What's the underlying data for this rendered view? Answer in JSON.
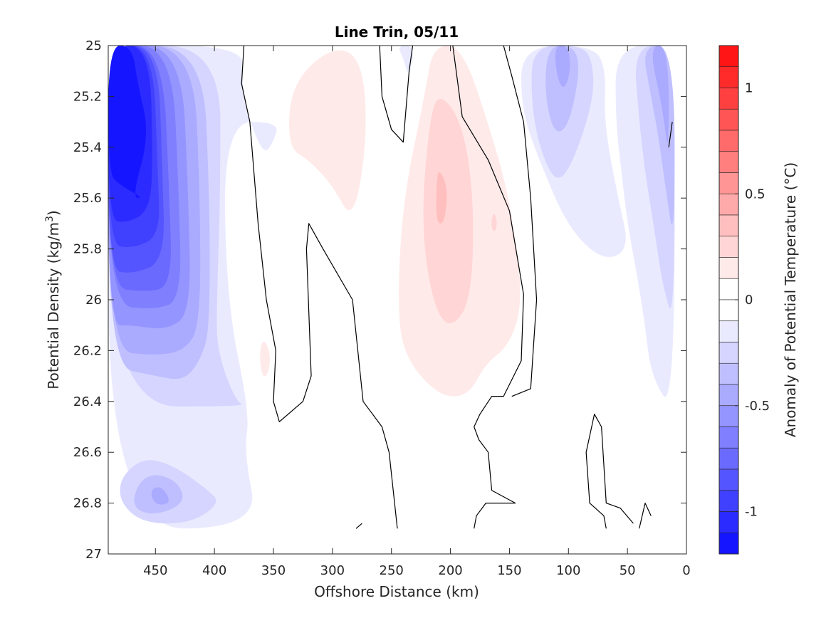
{
  "chart_data": {
    "type": "contour",
    "title": "Line Trin, 05/11",
    "xlabel": "Offshore Distance (km)",
    "ylabel_prefix": "Potential Density (kg/m",
    "ylabel_sup": "3",
    "ylabel_suffix": ")",
    "colorbar_label": "Anomaly of Potential Temperature (°C)",
    "x_range": [
      490,
      0
    ],
    "x_reversed": true,
    "y_range": [
      25,
      27
    ],
    "y_reversed": true,
    "x_ticks": [
      450,
      400,
      350,
      300,
      250,
      200,
      150,
      100,
      50,
      0
    ],
    "x_tick_labels": [
      "450",
      "400",
      "350",
      "300",
      "250",
      "200",
      "150",
      "100",
      "50",
      "0"
    ],
    "y_ticks": [
      25,
      25.2,
      25.4,
      25.6,
      25.8,
      26,
      26.2,
      26.4,
      26.6,
      26.8,
      27
    ],
    "y_tick_labels": [
      "25",
      "25.2",
      "25.4",
      "25.6",
      "25.8",
      "26",
      "26.2",
      "26.4",
      "26.6",
      "26.8",
      "27"
    ],
    "colorbar_range": [
      -1.2,
      1.2
    ],
    "colorbar_step": 0.1,
    "colorbar_ticks": [
      1,
      0.5,
      0,
      -0.5,
      -1
    ],
    "colorbar_tick_labels": [
      "1",
      "0.5",
      "0",
      "-0.5",
      "-1"
    ],
    "colormap": {
      "negative": "#0000ff",
      "zero": "#ffffff",
      "positive": "#ff0000"
    },
    "zero_contour_color": "#000000",
    "data_extent": {
      "x": [
        490,
        10
      ],
      "y": [
        25,
        26.9
      ]
    },
    "regions": [
      {
        "level": -0.1,
        "points": [
          [
            490,
            25
          ],
          [
            375,
            25
          ],
          [
            377,
            25.15
          ],
          [
            370,
            25.3
          ],
          [
            358,
            25.43
          ],
          [
            350,
            25.38
          ],
          [
            345,
            25.3
          ],
          [
            392,
            25.3
          ],
          [
            390,
            26
          ],
          [
            370,
            26.45
          ],
          [
            375,
            26.6
          ],
          [
            362,
            26.9
          ],
          [
            490,
            26.9
          ]
        ]
      },
      {
        "level": -0.2,
        "points": [
          [
            490,
            25
          ],
          [
            395,
            25
          ],
          [
            395,
            25.6
          ],
          [
            398,
            26
          ],
          [
            398,
            26.2
          ],
          [
            382,
            26.4
          ],
          [
            372,
            26.42
          ],
          [
            490,
            26.42
          ]
        ]
      },
      {
        "level": -0.2,
        "points": [
          [
            480,
            26.7
          ],
          [
            460,
            26.62
          ],
          [
            435,
            26.65
          ],
          [
            405,
            26.75
          ],
          [
            395,
            26.8
          ],
          [
            420,
            26.88
          ],
          [
            460,
            26.88
          ],
          [
            480,
            26.8
          ]
        ]
      },
      {
        "level": -0.3,
        "points": [
          [
            490,
            25
          ],
          [
            410,
            25
          ],
          [
            404,
            25.6
          ],
          [
            404,
            26.1
          ],
          [
            410,
            26.22
          ],
          [
            425,
            26.32
          ],
          [
            450,
            26.3
          ],
          [
            490,
            26.26
          ]
        ]
      },
      {
        "level": -0.3,
        "points": [
          [
            465,
            26.72
          ],
          [
            450,
            26.68
          ],
          [
            430,
            26.72
          ],
          [
            425,
            26.8
          ],
          [
            450,
            26.85
          ],
          [
            470,
            26.82
          ]
        ]
      },
      {
        "level": -0.4,
        "points": [
          [
            490,
            25
          ],
          [
            418,
            25
          ],
          [
            412,
            25.6
          ],
          [
            412,
            26.1
          ],
          [
            425,
            26.2
          ],
          [
            450,
            26.22
          ],
          [
            490,
            26.2
          ]
        ]
      },
      {
        "level": -0.4,
        "points": [
          [
            455,
            26.75
          ],
          [
            445,
            26.73
          ],
          [
            436,
            26.8
          ],
          [
            450,
            26.81
          ]
        ]
      },
      {
        "level": -0.5,
        "points": [
          [
            490,
            25
          ],
          [
            428,
            25
          ],
          [
            422,
            25.6
          ],
          [
            420,
            26.05
          ],
          [
            440,
            26.12
          ],
          [
            470,
            26.1
          ],
          [
            490,
            26.1
          ]
        ]
      },
      {
        "level": -0.6,
        "points": [
          [
            490,
            25
          ],
          [
            436,
            25
          ],
          [
            430,
            25.6
          ],
          [
            428,
            26
          ],
          [
            450,
            26.04
          ],
          [
            490,
            26.02
          ]
        ]
      },
      {
        "level": -0.7,
        "points": [
          [
            490,
            25
          ],
          [
            444,
            25
          ],
          [
            438,
            25.6
          ],
          [
            436,
            25.95
          ],
          [
            460,
            25.97
          ],
          [
            490,
            25.95
          ]
        ]
      },
      {
        "level": -0.8,
        "points": [
          [
            490,
            25
          ],
          [
            448,
            25
          ],
          [
            444,
            25.5
          ],
          [
            442,
            25.85
          ],
          [
            470,
            25.9
          ],
          [
            490,
            25.88
          ]
        ]
      },
      {
        "level": -0.9,
        "points": [
          [
            490,
            25
          ],
          [
            452,
            25
          ],
          [
            448,
            25.5
          ],
          [
            446,
            25.75
          ],
          [
            470,
            25.8
          ],
          [
            490,
            25.78
          ]
        ]
      },
      {
        "level": -1.0,
        "points": [
          [
            490,
            25
          ],
          [
            455,
            25
          ],
          [
            452,
            25.45
          ],
          [
            455,
            25.65
          ],
          [
            475,
            25.7
          ],
          [
            490,
            25.68
          ]
        ]
      },
      {
        "level": -1.1,
        "points": [
          [
            490,
            25
          ],
          [
            470,
            25
          ],
          [
            465,
            25.15
          ],
          [
            455,
            25.35
          ],
          [
            470,
            25.6
          ],
          [
            460,
            25.6
          ],
          [
            480,
            25.55
          ],
          [
            490,
            25.5
          ]
        ]
      },
      {
        "level": 0.1,
        "points": [
          [
            335,
            25.15
          ],
          [
            300,
            25
          ],
          [
            275,
            25.05
          ],
          [
            270,
            25.35
          ],
          [
            282,
            25.7
          ],
          [
            300,
            25.55
          ],
          [
            320,
            25.45
          ],
          [
            338,
            25.4
          ]
        ]
      },
      {
        "level": 0.1,
        "points": [
          [
            215,
            25
          ],
          [
            190,
            25
          ],
          [
            165,
            25.35
          ],
          [
            150,
            25.6
          ],
          [
            138,
            26
          ],
          [
            150,
            26.18
          ],
          [
            170,
            26.25
          ],
          [
            185,
            26.38
          ],
          [
            210,
            26.38
          ],
          [
            240,
            26.22
          ],
          [
            245,
            26
          ],
          [
            240,
            25.6
          ],
          [
            222,
            25.2
          ]
        ]
      },
      {
        "level": 0.1,
        "points": [
          [
            358,
            26.15
          ],
          [
            352,
            26.22
          ],
          [
            355,
            26.3
          ],
          [
            360,
            26.3
          ],
          [
            362,
            26.2
          ]
        ]
      },
      {
        "level": 0.2,
        "points": [
          [
            210,
            25.18
          ],
          [
            190,
            25.3
          ],
          [
            180,
            25.6
          ],
          [
            182,
            26
          ],
          [
            200,
            26.12
          ],
          [
            215,
            26.02
          ],
          [
            225,
            25.7
          ],
          [
            218,
            25.3
          ]
        ]
      },
      {
        "level": 0.2,
        "points": [
          [
            163,
            25.65
          ],
          [
            160,
            25.7
          ],
          [
            163,
            25.74
          ],
          [
            166,
            25.7
          ]
        ]
      },
      {
        "level": 0.3,
        "points": [
          [
            210,
            25.48
          ],
          [
            202,
            25.56
          ],
          [
            205,
            25.7
          ],
          [
            212,
            25.7
          ],
          [
            212,
            25.55
          ]
        ]
      },
      {
        "level": -0.1,
        "points": [
          [
            245,
            25
          ],
          [
            230,
            25
          ],
          [
            235,
            25.13
          ],
          [
            240,
            25.05
          ]
        ]
      },
      {
        "level": -0.1,
        "points": [
          [
            140,
            25
          ],
          [
            78,
            25
          ],
          [
            68,
            25.1
          ],
          [
            70,
            25.3
          ],
          [
            58,
            25.6
          ],
          [
            48,
            25.8
          ],
          [
            70,
            25.85
          ],
          [
            100,
            25.72
          ],
          [
            125,
            25.45
          ],
          [
            140,
            25.25
          ]
        ]
      },
      {
        "level": -0.1,
        "points": [
          [
            60,
            25
          ],
          [
            10,
            25
          ],
          [
            10,
            26.45
          ],
          [
            30,
            26.3
          ],
          [
            35,
            26.1
          ],
          [
            42,
            25.9
          ],
          [
            50,
            25.7
          ],
          [
            55,
            25.5
          ],
          [
            60,
            25.3
          ]
        ]
      },
      {
        "level": -0.2,
        "points": [
          [
            130,
            25
          ],
          [
            90,
            25
          ],
          [
            80,
            25.05
          ],
          [
            78,
            25.2
          ],
          [
            95,
            25.45
          ],
          [
            110,
            25.55
          ],
          [
            125,
            25.4
          ],
          [
            132,
            25.2
          ]
        ]
      },
      {
        "level": -0.2,
        "points": [
          [
            45,
            25
          ],
          [
            10,
            25
          ],
          [
            10,
            26.1
          ],
          [
            20,
            25.95
          ],
          [
            28,
            25.7
          ],
          [
            35,
            25.5
          ],
          [
            40,
            25.3
          ]
        ]
      },
      {
        "level": -0.3,
        "points": [
          [
            118,
            25
          ],
          [
            95,
            25
          ],
          [
            90,
            25.1
          ],
          [
            100,
            25.32
          ],
          [
            112,
            25.35
          ],
          [
            120,
            25.2
          ]
        ]
      },
      {
        "level": -0.3,
        "points": [
          [
            38,
            25
          ],
          [
            10,
            25
          ],
          [
            10,
            25.8
          ],
          [
            18,
            25.55
          ],
          [
            24,
            25.35
          ],
          [
            30,
            25.2
          ]
        ]
      },
      {
        "level": -0.4,
        "points": [
          [
            112,
            25
          ],
          [
            100,
            25
          ],
          [
            98,
            25.1
          ],
          [
            104,
            25.18
          ],
          [
            110,
            25.12
          ]
        ]
      },
      {
        "level": -0.4,
        "points": [
          [
            32,
            25
          ],
          [
            15,
            25
          ],
          [
            15,
            25.45
          ],
          [
            20,
            25.25
          ]
        ]
      }
    ],
    "zero_contours": [
      [
        [
          375,
          25
        ],
        [
          377,
          25.15
        ],
        [
          370,
          25.3
        ],
        [
          363,
          25.7
        ],
        [
          356,
          26
        ],
        [
          348,
          26.2
        ],
        [
          350,
          26.4
        ],
        [
          345,
          26.48
        ],
        [
          325,
          26.4
        ],
        [
          318,
          26.3
        ],
        [
          322,
          25.8
        ],
        [
          320,
          25.7
        ],
        [
          308,
          25.8
        ],
        [
          283,
          26
        ],
        [
          274,
          26.4
        ],
        [
          258,
          26.5
        ],
        [
          252,
          26.6
        ],
        [
          245,
          26.9
        ]
      ],
      [
        [
          260,
          25
        ],
        [
          258,
          25.2
        ],
        [
          250,
          25.33
        ],
        [
          240,
          25.38
        ],
        [
          235,
          25.1
        ],
        [
          232,
          25
        ]
      ],
      [
        [
          198,
          25
        ],
        [
          190,
          25.28
        ],
        [
          168,
          25.45
        ],
        [
          150,
          25.65
        ],
        [
          138,
          25.98
        ],
        [
          140,
          26.24
        ],
        [
          155,
          26.38
        ],
        [
          165,
          26.38
        ],
        [
          175,
          26.45
        ],
        [
          180,
          26.5
        ],
        [
          176,
          26.55
        ],
        [
          168,
          26.6
        ],
        [
          165,
          26.75
        ],
        [
          145,
          26.8
        ],
        [
          170,
          26.8
        ],
        [
          178,
          26.85
        ],
        [
          180,
          26.9
        ]
      ],
      [
        [
          280,
          26.9
        ],
        [
          275,
          26.88
        ]
      ],
      [
        [
          155,
          25
        ],
        [
          148,
          25.12
        ],
        [
          138,
          25.3
        ],
        [
          132,
          25.6
        ],
        [
          127,
          26.0
        ],
        [
          132,
          26.35
        ],
        [
          148,
          26.38
        ]
      ],
      [
        [
          68,
          26.9
        ],
        [
          70,
          26.85
        ],
        [
          82,
          26.8
        ],
        [
          85,
          26.6
        ],
        [
          78,
          26.45
        ],
        [
          72,
          26.5
        ],
        [
          68,
          26.8
        ],
        [
          56,
          26.82
        ],
        [
          45,
          26.88
        ]
      ],
      [
        [
          40,
          26.9
        ],
        [
          35,
          26.8
        ],
        [
          30,
          26.85
        ]
      ],
      [
        [
          12,
          25.3
        ],
        [
          15,
          25.4
        ]
      ]
    ]
  }
}
